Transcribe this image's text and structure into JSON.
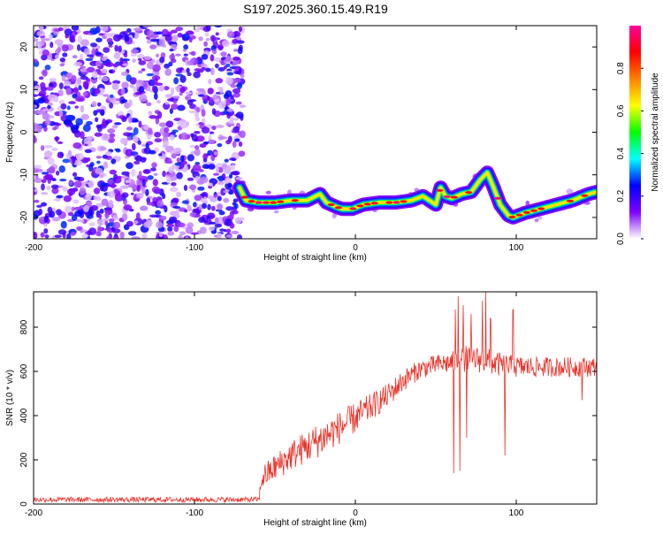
{
  "title": "S197.2025.360.15.49.R19",
  "chart_data": [
    {
      "type": "heatmap",
      "name": "spectrogram",
      "xlabel": "Height of straight line (km)",
      "ylabel": "Frequency (Hz)",
      "xlim": [
        -200,
        150
      ],
      "ylim": [
        -25,
        25
      ],
      "xticks": [
        -200,
        -100,
        0,
        100
      ],
      "yticks": [
        -20,
        -10,
        0,
        10,
        20
      ],
      "noise_region_x": [
        -200,
        -70
      ],
      "noise_amplitude_range": [
        0.0,
        0.25
      ],
      "ridge": {
        "x": [
          -72,
          -68,
          -60,
          -50,
          -40,
          -30,
          -22,
          -18,
          -12,
          -8,
          -2,
          5,
          15,
          25,
          35,
          42,
          46,
          50,
          53,
          56,
          60,
          66,
          72,
          78,
          82,
          86,
          90,
          95,
          98,
          105,
          115,
          125,
          135,
          145,
          150
        ],
        "y": [
          -13,
          -16,
          -16.5,
          -16.5,
          -16,
          -16,
          -14.5,
          -16.5,
          -17.5,
          -18,
          -18,
          -17,
          -16.5,
          -16.5,
          -16,
          -15,
          -16,
          -17,
          -13,
          -15,
          -15.5,
          -14.5,
          -14,
          -11,
          -9.5,
          -13,
          -17,
          -19.5,
          -20,
          -19,
          -18,
          -17,
          -16,
          -14.5,
          -14
        ]
      },
      "colorbar": {
        "label": "Normalized spectral amplitude",
        "range": [
          0.0,
          1.0
        ],
        "ticks": [
          0.0,
          0.2,
          0.4,
          0.6,
          0.8
        ],
        "tick_labels": [
          "0.0",
          "0.2",
          "0.4",
          "0.6",
          "0.8"
        ],
        "colors": [
          "#ffffff",
          "#8000ff",
          "#0000ff",
          "#00ffff",
          "#00ff00",
          "#ffff00",
          "#ff8000",
          "#ff0000",
          "#ff00a0"
        ]
      }
    },
    {
      "type": "line",
      "name": "snr",
      "xlabel": "Height of straight line (km)",
      "ylabel": "SNR (10 * v/v)",
      "xlim": [
        -200,
        150
      ],
      "ylim": [
        0,
        960
      ],
      "xticks": [
        -200,
        -100,
        0,
        100
      ],
      "yticks": [
        0,
        200,
        400,
        600,
        800
      ],
      "color": "#e8332a",
      "profile": {
        "x": [
          -200,
          -60,
          -58,
          -40,
          -20,
          0,
          20,
          30,
          40,
          50,
          60,
          70,
          80,
          90,
          100,
          120,
          150
        ],
        "y": [
          20,
          20,
          120,
          220,
          300,
          390,
          490,
          560,
          610,
          630,
          640,
          660,
          650,
          630,
          620,
          620,
          620
        ]
      },
      "noise_level": [
        12,
        12,
        55,
        70,
        80,
        70,
        55,
        50,
        45,
        45,
        50,
        60,
        60,
        55,
        50,
        45,
        45
      ],
      "spikes": [
        {
          "x": 61,
          "y": 140
        },
        {
          "x": 62,
          "y": 880
        },
        {
          "x": 64,
          "y": 940
        },
        {
          "x": 65,
          "y": 150
        },
        {
          "x": 67,
          "y": 900
        },
        {
          "x": 69,
          "y": 300
        },
        {
          "x": 72,
          "y": 860
        },
        {
          "x": 79,
          "y": 920
        },
        {
          "x": 81,
          "y": 960
        },
        {
          "x": 84,
          "y": 840
        },
        {
          "x": 93,
          "y": 220
        },
        {
          "x": 98,
          "y": 880
        },
        {
          "x": 141,
          "y": 470
        }
      ]
    }
  ]
}
